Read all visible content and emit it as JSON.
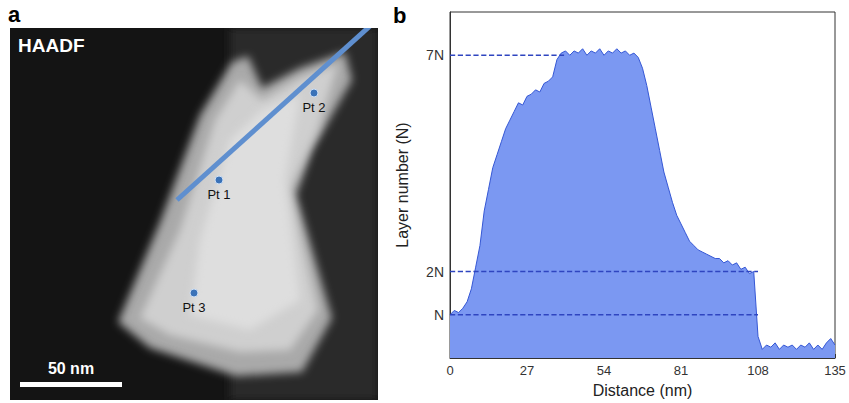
{
  "image_panel": {
    "panel_label": "a",
    "mode_label": "HAADF",
    "scale_bar_label": "50 nm",
    "points": [
      "Pt 1",
      "Pt 2",
      "Pt 3"
    ]
  },
  "chart_data": {
    "type": "area",
    "panel_label": "b",
    "x_label": "Distance (nm)",
    "y_label": "Layer number (N)",
    "color": "#7b98f2",
    "line_color": "#3557d4",
    "x": [
      0,
      1.5,
      3,
      4.5,
      6,
      7.5,
      9,
      10.5,
      12,
      13.5,
      15,
      16.5,
      18,
      19.5,
      21,
      22.5,
      24,
      25.5,
      27,
      28.5,
      30,
      31.5,
      33,
      34.5,
      36,
      37.5,
      39,
      40.5,
      42,
      43.5,
      45,
      46.5,
      48,
      49.5,
      51,
      52.5,
      54,
      55.5,
      57,
      58.5,
      60,
      61.5,
      63,
      64.5,
      66,
      67.5,
      69,
      70.5,
      72,
      73.5,
      75,
      76.5,
      78,
      79.5,
      81,
      82.5,
      84,
      85.5,
      87,
      88.5,
      90,
      91.5,
      93,
      94.5,
      96,
      97.5,
      99,
      100.5,
      102,
      103.5,
      105,
      106.5,
      108,
      109.5,
      111,
      112.5,
      114,
      115.5,
      117,
      118.5,
      120,
      121.5,
      123,
      124.5,
      126,
      127.5,
      129,
      130.5,
      132,
      133.5,
      135
    ],
    "values": [
      1.0,
      1.1,
      1.05,
      1.15,
      1.3,
      1.6,
      2.1,
      2.6,
      3.4,
      3.9,
      4.4,
      4.7,
      5.0,
      5.3,
      5.5,
      5.7,
      5.9,
      5.85,
      6.05,
      6.1,
      6.2,
      6.15,
      6.35,
      6.4,
      6.5,
      6.9,
      7.05,
      7.1,
      7.0,
      7.1,
      7.05,
      7.15,
      7.0,
      7.1,
      7.05,
      7.15,
      7.0,
      7.1,
      7.05,
      7.15,
      7.05,
      7.1,
      7.0,
      7.05,
      6.95,
      6.7,
      6.3,
      5.8,
      5.3,
      4.8,
      4.3,
      3.95,
      3.6,
      3.3,
      3.1,
      2.9,
      2.7,
      2.6,
      2.5,
      2.45,
      2.4,
      2.35,
      2.3,
      2.3,
      2.2,
      2.25,
      2.15,
      2.2,
      2.05,
      2.1,
      1.95,
      2.0,
      0.5,
      0.2,
      0.3,
      0.25,
      0.35,
      0.2,
      0.3,
      0.25,
      0.3,
      0.2,
      0.3,
      0.25,
      0.35,
      0.2,
      0.3,
      0.2,
      0.35,
      0.45,
      0.3
    ],
    "xlim": [
      0,
      135
    ],
    "xticks": [
      0,
      27,
      54,
      81,
      108,
      135
    ],
    "ylim": [
      0,
      8
    ],
    "yticks": [
      {
        "value": 1,
        "label": "N"
      },
      {
        "value": 2,
        "label": "2N"
      },
      {
        "value": 7,
        "label": "7N"
      }
    ],
    "guides": [
      {
        "y": 7,
        "x": [
          0,
          40
        ]
      },
      {
        "y": 2,
        "x": [
          0,
          108
        ]
      },
      {
        "y": 1,
        "x": [
          0,
          108
        ]
      }
    ],
    "line_style": "dashed",
    "grid": false
  }
}
